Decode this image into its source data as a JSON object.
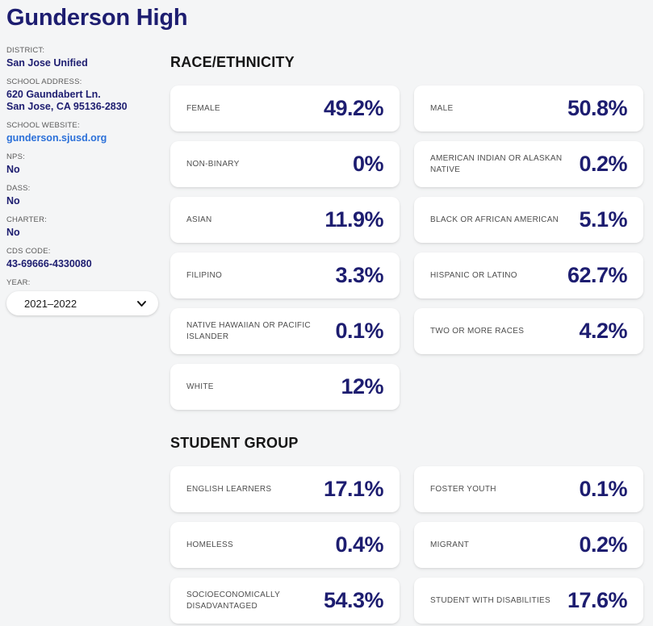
{
  "page": {
    "title": "Gunderson High",
    "background": "#f4f5f6",
    "accent_navy": "#1d1d70",
    "heading_color": "#161616",
    "label_gray": "#4e4e4e",
    "link_blue": "#2b70d9"
  },
  "sidebar": {
    "fields": [
      {
        "label": "DISTRICT:",
        "value": "San Jose Unified"
      },
      {
        "label": "SCHOOL ADDRESS:",
        "value": [
          "620 Gaundabert Ln.",
          "San Jose, CA 95136-2830"
        ]
      },
      {
        "label": "SCHOOL WEBSITE:",
        "value": "gunderson.sjusd.org",
        "link": true
      },
      {
        "label": "NPS:",
        "value": "No"
      },
      {
        "label": "DASS:",
        "value": "No"
      },
      {
        "label": "CHARTER:",
        "value": "No"
      },
      {
        "label": "CDS CODE:",
        "value": "43-69666-4330080"
      }
    ],
    "year": {
      "label": "YEAR:",
      "selected": "2021–2022"
    }
  },
  "sections": [
    {
      "heading": "RACE/ETHNICITY",
      "cards": [
        {
          "label": "FEMALE",
          "value": "49.2%"
        },
        {
          "label": "MALE",
          "value": "50.8%"
        },
        {
          "label": "NON-BINARY",
          "value": "0%"
        },
        {
          "label": "AMERICAN INDIAN OR ALASKAN NATIVE",
          "value": "0.2%"
        },
        {
          "label": "ASIAN",
          "value": "11.9%"
        },
        {
          "label": "BLACK OR AFRICAN AMERICAN",
          "value": "5.1%"
        },
        {
          "label": "FILIPINO",
          "value": "3.3%"
        },
        {
          "label": "HISPANIC OR LATINO",
          "value": "62.7%"
        },
        {
          "label": "NATIVE HAWAIIAN OR PACIFIC ISLANDER",
          "value": "0.1%"
        },
        {
          "label": "TWO OR MORE RACES",
          "value": "4.2%"
        },
        {
          "label": "WHITE",
          "value": "12%"
        }
      ]
    },
    {
      "heading": "STUDENT GROUP",
      "cards": [
        {
          "label": "ENGLISH LEARNERS",
          "value": "17.1%"
        },
        {
          "label": "FOSTER YOUTH",
          "value": "0.1%"
        },
        {
          "label": "HOMELESS",
          "value": "0.4%"
        },
        {
          "label": "MIGRANT",
          "value": "0.2%"
        },
        {
          "label": "SOCIOECONOMICALLY DISADVANTAGED",
          "value": "54.3%"
        },
        {
          "label": "STUDENT WITH DISABILITIES",
          "value": "17.6%"
        }
      ]
    }
  ]
}
